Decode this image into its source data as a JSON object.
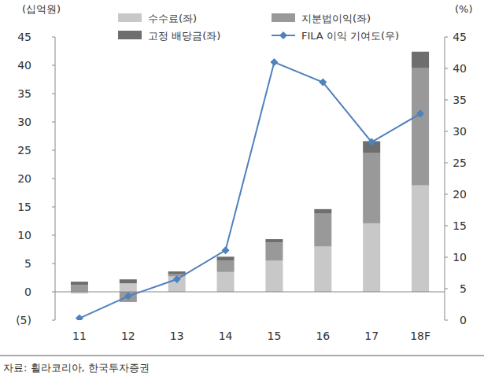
{
  "chart_data": {
    "type": "bar",
    "stacked": true,
    "legend": "top",
    "y_label": "(십억원)",
    "y2_label": "(%)",
    "source": "자료: 휠라코리아, 한국투자증권",
    "categories": [
      "11",
      "12",
      "13",
      "14",
      "15",
      "16",
      "17",
      "18F"
    ],
    "ylim": [
      -5,
      45
    ],
    "yticks": [
      {
        "value": -5,
        "label": "(5)"
      },
      0,
      5,
      10,
      15,
      20,
      25,
      30,
      35,
      40,
      45
    ],
    "y2lim": [
      0,
      45
    ],
    "y2ticks": [
      0,
      5,
      10,
      15,
      20,
      25,
      30,
      35,
      40,
      45
    ],
    "series": [
      {
        "name": "수수료(좌)",
        "type": "bar",
        "color": "#c8c8c8",
        "values": [
          -0.3,
          1.5,
          2.7,
          3.5,
          5.5,
          8.0,
          12.1,
          18.8
        ]
      },
      {
        "name": "지분법이익(좌)",
        "type": "bar",
        "color": "#999999",
        "values": [
          1.2,
          -1.8,
          0.4,
          2.0,
          3.2,
          5.8,
          12.4,
          20.7
        ]
      },
      {
        "name": "고정 배당금(좌)",
        "type": "bar",
        "color": "#6e6e6e",
        "values": [
          0.6,
          0.7,
          0.5,
          0.7,
          0.6,
          0.8,
          2.1,
          2.9
        ]
      },
      {
        "name": "FILA 이익 기여도(우)",
        "type": "line",
        "axis": "y2",
        "color": "#4f81bd",
        "marker": "diamond",
        "values": [
          0.3,
          3.8,
          6.5,
          11.1,
          41.0,
          37.8,
          28.3,
          32.8
        ]
      }
    ]
  }
}
